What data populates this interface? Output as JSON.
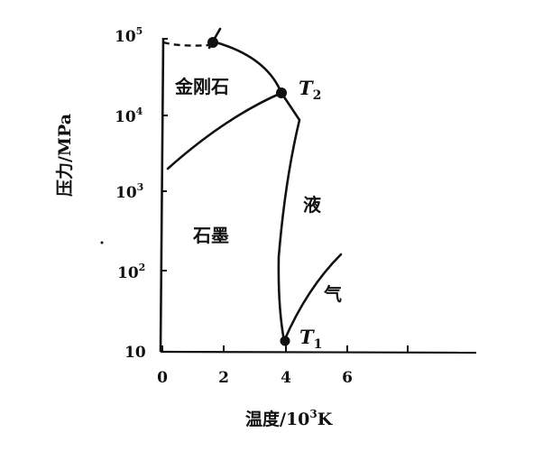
{
  "diagram": {
    "y_axis_title": "压力/MPa",
    "x_axis_title_main": "温度/10",
    "x_axis_title_exp": "3",
    "x_axis_title_unit": "K",
    "y_ticks": [
      {
        "base": "10",
        "exp": "5"
      },
      {
        "base": "10",
        "exp": "4"
      },
      {
        "base": "10",
        "exp": "3"
      },
      {
        "base": "10",
        "exp": "2"
      },
      {
        "base": "10",
        "exp": ""
      }
    ],
    "x_ticks": [
      "0",
      "2",
      "4",
      "6"
    ],
    "regions": {
      "diamond": "金刚石",
      "graphite": "石墨",
      "liquid": "液",
      "gas": "气"
    },
    "points": {
      "t2": {
        "letter": "T",
        "sub": "2"
      },
      "t1": {
        "letter": "T",
        "sub": "1"
      }
    }
  }
}
